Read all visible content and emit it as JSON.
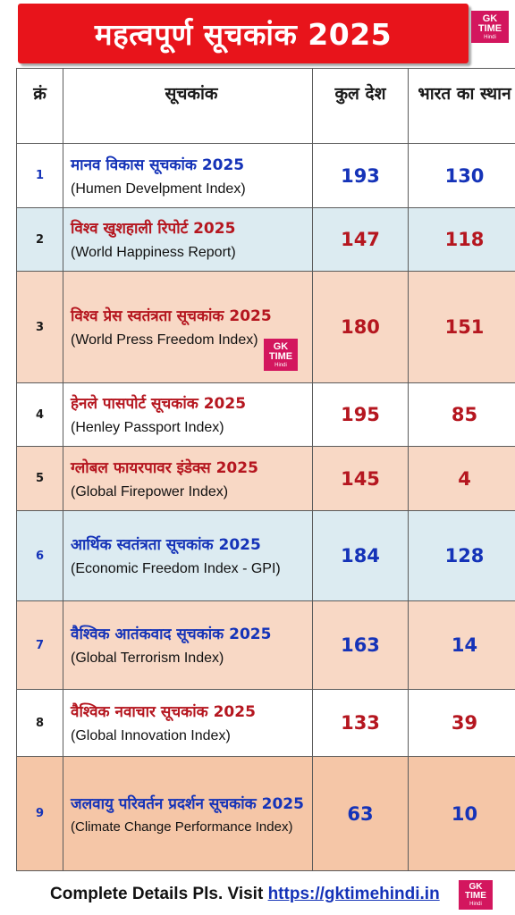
{
  "title": "महत्वपूर्ण सूचकांक 2025",
  "logo": {
    "line1": "GK",
    "line2": "TIME",
    "line3": "Hindi"
  },
  "headers": {
    "no": "क्रं",
    "index": "सूचकांक",
    "total": "कुल देश",
    "rank": "भारत का स्थान"
  },
  "rows": [
    {
      "no": "1",
      "hi": "मानव विकास सूचकांक 2025",
      "en": "(Humen Develpment Index)",
      "total": "193",
      "rank": "130",
      "bg": "#ffffff",
      "color": "blue"
    },
    {
      "no": "2",
      "hi": "विश्व खुशहाली रिपोर्ट 2025",
      "en": "(World Happiness Report)",
      "total": "147",
      "rank": "118",
      "bg": "#dcebf1",
      "color": "red"
    },
    {
      "no": "3",
      "hi": "विश्व प्रेस स्वतंत्रता सूचकांक 2025",
      "en": "(World Press Freedom Index)",
      "total": "180",
      "rank": "151",
      "bg": "#f8d8c5",
      "color": "red"
    },
    {
      "no": "4",
      "hi": "हेनले पासपोर्ट सूचकांक 2025",
      "en": "(Henley Passport Index)",
      "total": "195",
      "rank": "85",
      "bg": "#ffffff",
      "color": "red"
    },
    {
      "no": "5",
      "hi": "ग्लोबल फायरपावर इंडेक्स 2025",
      "en": "(Global Firepower Index)",
      "total": "145",
      "rank": "4",
      "bg": "#f8d8c5",
      "color": "red"
    },
    {
      "no": "6",
      "hi": "आर्थिक स्वतंत्रता सूचकांक 2025",
      "en": "(Economic Freedom Index - GPI)",
      "total": "184",
      "rank": "128",
      "bg": "#dcebf1",
      "color": "blue"
    },
    {
      "no": "7",
      "hi": "वैश्विक आतंकवाद सूचकांक 2025",
      "en": "(Global Terrorism Index)",
      "total": "163",
      "rank": "14",
      "bg": "#f8d8c5",
      "color": "blue"
    },
    {
      "no": "8",
      "hi": "वैश्विक नवाचार सूचकांक 2025",
      "en": "(Global Innovation Index)",
      "total": "133",
      "rank": "39",
      "bg": "#ffffff",
      "color": "red"
    },
    {
      "no": "9",
      "hi": "जलवायु परिवर्तन प्रदर्शन सूचकांक 2025",
      "en": "(Climate Change Performance Index)",
      "total": "63",
      "rank": "10",
      "bg": "#f5c6a7",
      "color": "blue"
    }
  ],
  "footer": {
    "text": "Complete Details Pls. Visit ",
    "url": "https://gktimehindi.in"
  }
}
